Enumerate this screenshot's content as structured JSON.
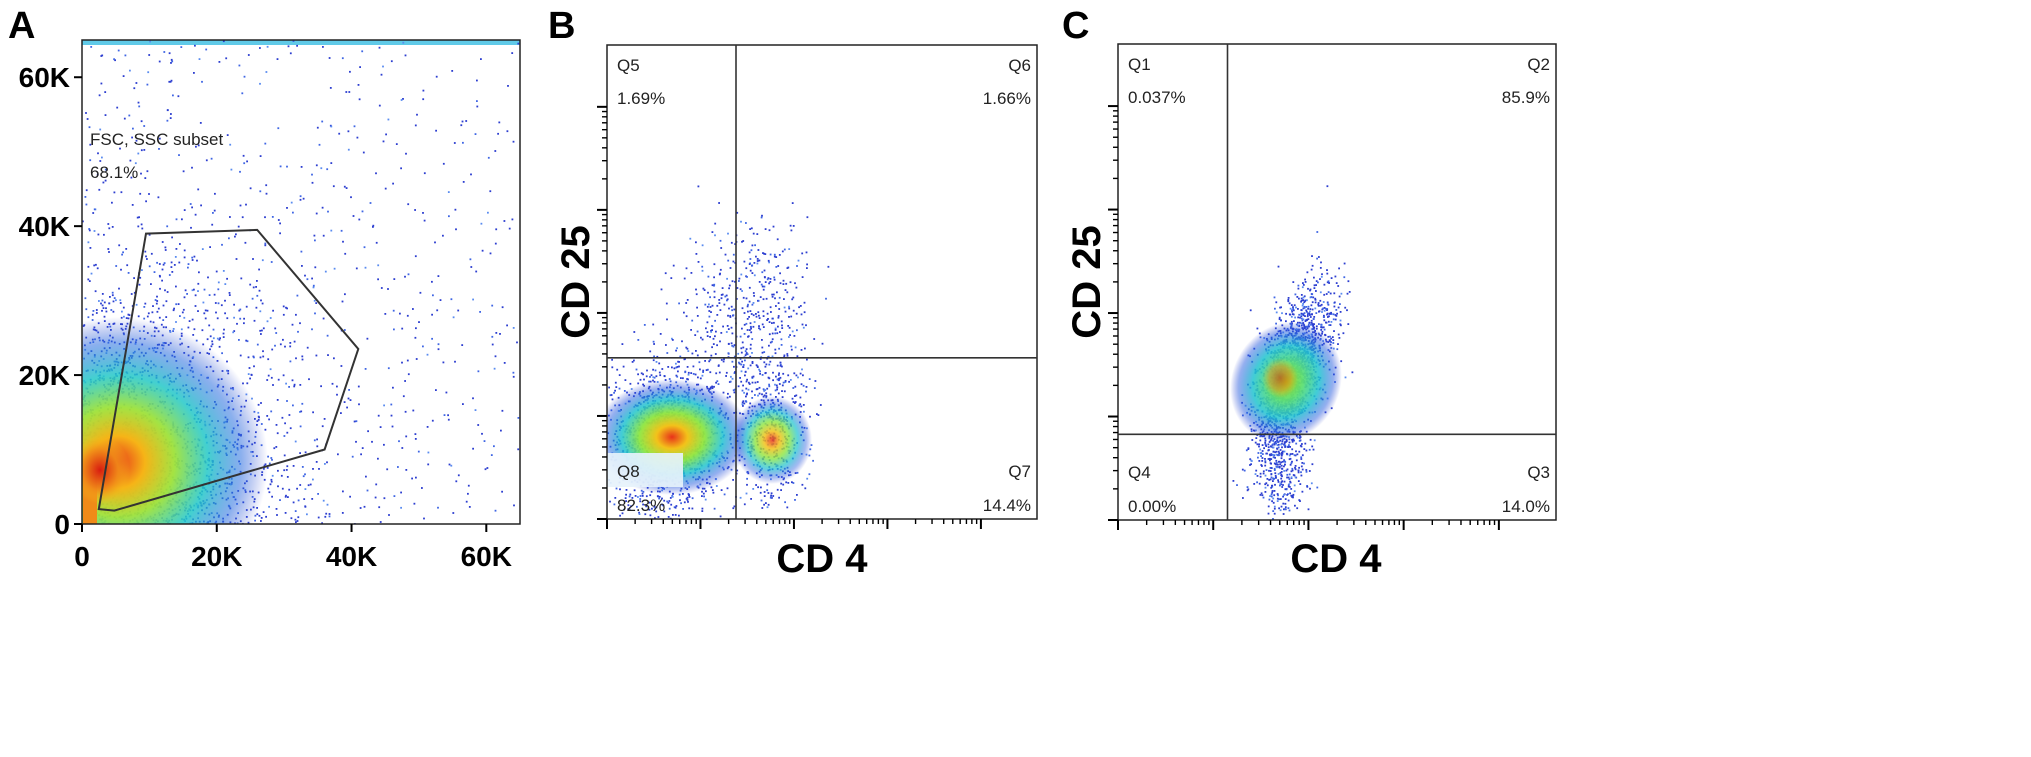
{
  "chart_data": [
    {
      "panel": "A",
      "type": "scatter",
      "xlim": [
        0,
        65000
      ],
      "ylim": [
        0,
        65000
      ],
      "x_ticks": [
        {
          "value": 0,
          "label": "0"
        },
        {
          "value": 20000,
          "label": "20K"
        },
        {
          "value": 40000,
          "label": "40K"
        },
        {
          "value": 60000,
          "label": "60K"
        }
      ],
      "y_ticks": [
        {
          "value": 0,
          "label": "0"
        },
        {
          "value": 20000,
          "label": "20K"
        },
        {
          "value": 40000,
          "label": "40K"
        },
        {
          "value": 60000,
          "label": "60K"
        }
      ],
      "gate": {
        "name": "FSC, SSC subset",
        "percent": "68.1%",
        "vertices": [
          [
            2500,
            2000
          ],
          [
            9500,
            39000
          ],
          [
            26000,
            39500
          ],
          [
            41000,
            23500
          ],
          [
            36000,
            10000
          ],
          [
            4800,
            1800
          ]
        ]
      },
      "density": {
        "center": [
          5000,
          7000
        ],
        "spread": [
          12000,
          12000
        ]
      }
    },
    {
      "panel": "B",
      "type": "scatter",
      "xlabel": "CD 4",
      "ylabel": "CD 25",
      "xlim": [
        0,
        1
      ],
      "ylim": [
        0,
        1
      ],
      "quadrant_split": [
        0.3,
        0.34
      ],
      "quadrants": [
        {
          "name": "Q5",
          "percent": "1.69%",
          "position": "top-left"
        },
        {
          "name": "Q6",
          "percent": "1.66%",
          "position": "top-right"
        },
        {
          "name": "Q7",
          "percent": "14.4%",
          "position": "bottom-right"
        },
        {
          "name": "Q8",
          "percent": "82.3%",
          "position": "bottom-left"
        }
      ]
    },
    {
      "panel": "C",
      "type": "scatter",
      "xlabel": "CD 4",
      "ylabel": "CD 25",
      "xlim": [
        0,
        1
      ],
      "ylim": [
        0,
        1
      ],
      "quadrant_split": [
        0.25,
        0.18
      ],
      "quadrants": [
        {
          "name": "Q1",
          "percent": "0.037%",
          "position": "top-left"
        },
        {
          "name": "Q2",
          "percent": "85.9%",
          "position": "top-right"
        },
        {
          "name": "Q3",
          "percent": "14.0%",
          "position": "bottom-right"
        },
        {
          "name": "Q4",
          "percent": "0.00%",
          "position": "bottom-left"
        }
      ]
    }
  ]
}
